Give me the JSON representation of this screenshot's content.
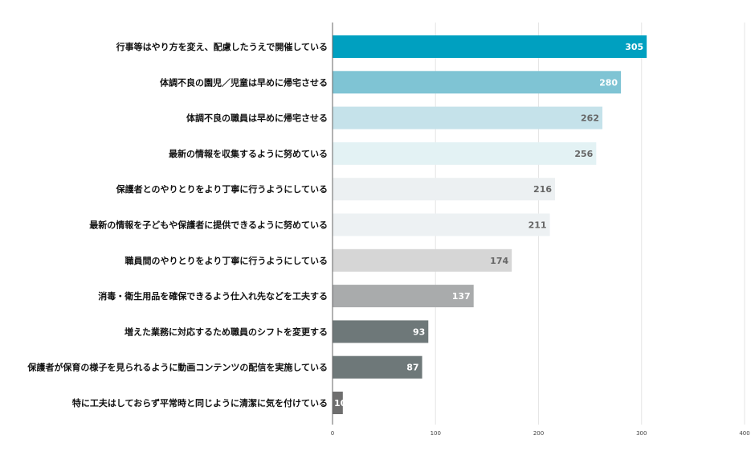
{
  "chart_data": {
    "type": "bar",
    "orientation": "horizontal",
    "categories": [
      "行事等はやり方を変え、配慮したうえで開催している",
      "体調不良の園児／児童は早めに帰宅させる",
      "体調不良の職員は早めに帰宅させる",
      "最新の情報を収集するように努めている",
      "保護者とのやりとりをより丁寧に行うようにしている",
      "最新の情報を子どもや保護者に提供できるように努めている",
      "職員間のやりとりをより丁寧に行うようにしている",
      "消毒・衛生用品を確保できるよう仕入れ先などを工夫する",
      "増えた業務に対応するため職員のシフトを変更する",
      "保護者が保育の様子を見られるように動画コンテンツの配信を実施している",
      "特に工夫はしておらず平常時と同じように清潔に気を付けている"
    ],
    "values": [
      305,
      280,
      262,
      256,
      216,
      211,
      174,
      137,
      93,
      87,
      10
    ],
    "bar_colors": [
      "#00a0c0",
      "#7fc4d4",
      "#c5e2ea",
      "#e3f2f4",
      "#ecf0f2",
      "#edf1f3",
      "#d6d6d6",
      "#a9abac",
      "#6e7879",
      "#6e7879",
      "#6e6e6e"
    ],
    "value_label_colors": [
      "#ffffff",
      "#ffffff",
      "#666666",
      "#666666",
      "#666666",
      "#666666",
      "#666666",
      "#ffffff",
      "#ffffff",
      "#ffffff",
      "#ffffff"
    ],
    "xlim": [
      0,
      400
    ],
    "xticks": [
      "0",
      "100",
      "200",
      "300",
      "400"
    ],
    "grid": true,
    "legend": "none"
  }
}
